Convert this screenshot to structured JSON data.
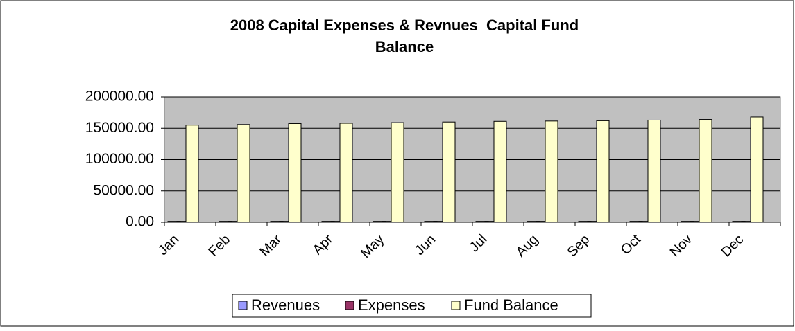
{
  "chart_data": {
    "type": "bar",
    "title": [
      "2008 Capital Expenses & Revnues  Capital Fund",
      "Balance"
    ],
    "categories": [
      "Jan",
      "Feb",
      "Mar",
      "Apr",
      "May",
      "Jun",
      "Jul",
      "Aug",
      "Sep",
      "Oct",
      "Nov",
      "Dec"
    ],
    "series": [
      {
        "name": "Revenues",
        "color": "#9999ff",
        "values": [
          1500,
          1500,
          1500,
          1500,
          1500,
          1500,
          1500,
          1500,
          1500,
          1500,
          1500,
          1500
        ]
      },
      {
        "name": "Expenses",
        "color": "#993366",
        "values": [
          1500,
          1500,
          1500,
          1500,
          1500,
          1500,
          1500,
          1500,
          1500,
          1500,
          1500,
          1500
        ]
      },
      {
        "name": "Fund Balance",
        "color": "#ffffcc",
        "values": [
          155000,
          156000,
          157500,
          158000,
          159000,
          160000,
          161000,
          161500,
          162000,
          163000,
          164000,
          168000
        ]
      }
    ],
    "ylim": [
      0,
      200000
    ],
    "yticks": [
      {
        "value": 0,
        "label": "0.00"
      },
      {
        "value": 50000,
        "label": "50000.00"
      },
      {
        "value": 100000,
        "label": "100000.00"
      },
      {
        "value": 150000,
        "label": "150000.00"
      },
      {
        "value": 200000,
        "label": "200000.00"
      }
    ],
    "grid": true,
    "legend": "bottom"
  }
}
